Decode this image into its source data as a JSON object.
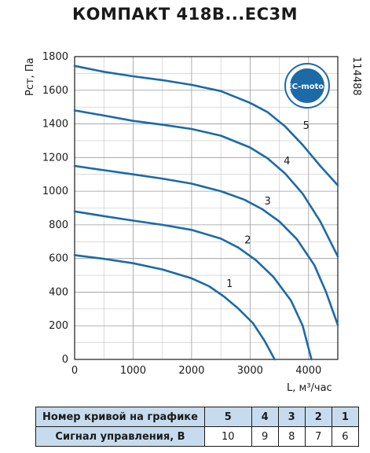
{
  "title": "КОМПАКТ 418В...ЕС3М",
  "code": "114488",
  "badge": "EC-motor",
  "colors": {
    "curve": "#1c6aa8",
    "badge": "#1c6aa8",
    "table_head": "#c6dcee",
    "axis": "#1a1a1a"
  },
  "chart_data": {
    "type": "line",
    "title": "КОМПАКТ 418В...ЕС3М",
    "xlabel": "L, м³/час",
    "ylabel": "Рст, Па",
    "xlim": [
      0,
      4500
    ],
    "ylim": [
      0,
      1800
    ],
    "xticks": [
      0,
      1000,
      2000,
      3000,
      4000
    ],
    "yticks": [
      0,
      200,
      400,
      600,
      800,
      1000,
      1200,
      1400,
      1600,
      1800
    ],
    "grid": true,
    "series": [
      {
        "name": "1",
        "x": [
          0,
          500,
          1000,
          1500,
          2000,
          2300,
          2550,
          2800,
          3050,
          3250,
          3420
        ],
        "y": [
          620,
          598,
          572,
          535,
          482,
          435,
          375,
          302,
          215,
          110,
          0
        ]
      },
      {
        "name": "2",
        "x": [
          0,
          500,
          1000,
          1500,
          2000,
          2500,
          2800,
          3100,
          3400,
          3700,
          3900,
          4050
        ],
        "y": [
          880,
          852,
          825,
          800,
          770,
          718,
          665,
          590,
          490,
          350,
          200,
          0
        ]
      },
      {
        "name": "3",
        "x": [
          0,
          500,
          1000,
          1500,
          2000,
          2500,
          2900,
          3200,
          3500,
          3800,
          4100,
          4300,
          4500
        ],
        "y": [
          1150,
          1125,
          1100,
          1075,
          1045,
          1000,
          950,
          895,
          820,
          715,
          560,
          400,
          205
        ]
      },
      {
        "name": "4",
        "x": [
          0,
          500,
          1000,
          1500,
          2000,
          2500,
          3000,
          3300,
          3600,
          3900,
          4200,
          4500
        ],
        "y": [
          1480,
          1450,
          1418,
          1395,
          1370,
          1330,
          1260,
          1195,
          1105,
          985,
          820,
          612
        ]
      },
      {
        "name": "5",
        "x": [
          0,
          500,
          1000,
          1500,
          2000,
          2500,
          3000,
          3300,
          3600,
          3900,
          4200,
          4500
        ],
        "y": [
          1745,
          1710,
          1683,
          1660,
          1632,
          1595,
          1525,
          1470,
          1385,
          1275,
          1150,
          1035
        ]
      }
    ]
  },
  "table": {
    "row1_label": "Номер кривой на графике",
    "row1_values": [
      "5",
      "4",
      "3",
      "2",
      "1"
    ],
    "row2_label": "Сигнал управления, В",
    "row2_values": [
      "10",
      "9",
      "8",
      "7",
      "6"
    ]
  }
}
